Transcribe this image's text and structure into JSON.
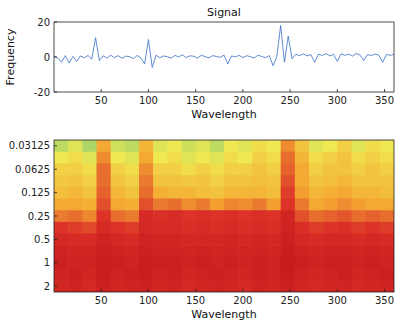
{
  "chart_data": [
    {
      "type": "line",
      "title": "Signal",
      "x_label": "Wavelength",
      "y_label": "Frequency",
      "color": "#3a6fc4",
      "x": [
        0,
        4,
        8,
        12,
        16,
        20,
        24,
        28,
        32,
        36,
        40,
        44,
        48,
        52,
        56,
        60,
        64,
        68,
        72,
        76,
        80,
        84,
        88,
        92,
        96,
        100,
        104,
        108,
        112,
        116,
        120,
        124,
        128,
        132,
        136,
        140,
        144,
        148,
        152,
        156,
        160,
        164,
        168,
        172,
        176,
        180,
        184,
        188,
        192,
        196,
        200,
        204,
        208,
        212,
        216,
        220,
        224,
        228,
        232,
        236,
        240,
        244,
        248,
        252,
        256,
        260,
        264,
        268,
        272,
        276,
        280,
        284,
        288,
        292,
        296,
        300,
        304,
        308,
        312,
        316,
        320,
        324,
        328,
        332,
        336,
        340,
        344,
        348,
        352,
        356,
        360
      ],
      "values": [
        0.5,
        -0.5,
        -3,
        0.8,
        -3.5,
        0.3,
        -2.5,
        0.6,
        -0.4,
        0.9,
        -1.2,
        11,
        -2,
        0.7,
        -0.6,
        1,
        -0.3,
        0.8,
        -0.8,
        0.5,
        0.2,
        -1,
        0.9,
        -0.5,
        -4,
        10,
        -6,
        1,
        -0.4,
        0.6,
        0.2,
        -0.7,
        0.9,
        0.1,
        1.2,
        -0.3,
        0.7,
        0.4,
        -0.6,
        1,
        0.2,
        -0.5,
        0.8,
        0.3,
        -0.2,
        1.1,
        -4,
        0.6,
        0.1,
        0.9,
        -0.3,
        0.7,
        0.2,
        -0.6,
        1,
        0.3,
        -0.4,
        0.8,
        -5,
        0.5,
        18,
        -3,
        12,
        -1,
        1.5,
        0.8,
        1.8,
        0.6,
        1.4,
        -3,
        1.6,
        0.9,
        2,
        0.7,
        1.5,
        -2.5,
        1.8,
        1,
        1.6,
        0.5,
        2,
        1.1,
        -2,
        1.4,
        0.8,
        1.7,
        1,
        -3,
        1.5,
        0.9,
        1.6
      ],
      "xlim": [
        0,
        360
      ],
      "xticks": [
        50,
        100,
        150,
        200,
        250,
        300,
        350
      ],
      "ylim": [
        -20,
        20
      ],
      "yticks": [
        -20,
        0,
        20
      ],
      "grid": false
    },
    {
      "type": "heatmap",
      "x_label": "Wavelength",
      "log": "y",
      "x_edges": [
        0,
        15,
        30,
        45,
        60,
        75,
        90,
        105,
        120,
        135,
        150,
        165,
        180,
        195,
        210,
        225,
        240,
        255,
        270,
        285,
        300,
        315,
        330,
        345,
        360
      ],
      "scales": [
        0.03125,
        0.0442,
        0.0625,
        0.0884,
        0.125,
        0.177,
        0.25,
        0.354,
        0.5,
        0.707,
        1,
        1.414,
        2
      ],
      "cells": [
        [
          0.2,
          0.3,
          0.15,
          0.6,
          0.25,
          0.2,
          0.55,
          0.3,
          0.35,
          0.25,
          0.3,
          0.2,
          0.35,
          0.3,
          0.4,
          0.35,
          0.65,
          0.5,
          0.3,
          0.35,
          0.45,
          0.3,
          0.4,
          0.35
        ],
        [
          0.35,
          0.4,
          0.3,
          0.65,
          0.35,
          0.3,
          0.6,
          0.35,
          0.4,
          0.3,
          0.35,
          0.3,
          0.4,
          0.35,
          0.45,
          0.4,
          0.7,
          0.55,
          0.4,
          0.45,
          0.5,
          0.4,
          0.45,
          0.4
        ],
        [
          0.45,
          0.45,
          0.4,
          0.7,
          0.45,
          0.4,
          0.65,
          0.45,
          0.45,
          0.4,
          0.45,
          0.4,
          0.45,
          0.45,
          0.5,
          0.45,
          0.72,
          0.6,
          0.45,
          0.5,
          0.5,
          0.45,
          0.5,
          0.45
        ],
        [
          0.48,
          0.5,
          0.45,
          0.7,
          0.5,
          0.45,
          0.68,
          0.5,
          0.5,
          0.48,
          0.5,
          0.45,
          0.5,
          0.5,
          0.52,
          0.5,
          0.75,
          0.6,
          0.5,
          0.52,
          0.55,
          0.5,
          0.5,
          0.5
        ],
        [
          0.52,
          0.55,
          0.5,
          0.72,
          0.55,
          0.5,
          0.7,
          0.58,
          0.55,
          0.55,
          0.52,
          0.5,
          0.55,
          0.55,
          0.55,
          0.52,
          0.78,
          0.62,
          0.55,
          0.58,
          0.6,
          0.55,
          0.55,
          0.52
        ],
        [
          0.6,
          0.6,
          0.58,
          0.75,
          0.6,
          0.58,
          0.75,
          0.68,
          0.7,
          0.65,
          0.68,
          0.62,
          0.66,
          0.65,
          0.68,
          0.62,
          0.8,
          0.68,
          0.6,
          0.62,
          0.65,
          0.62,
          0.6,
          0.6
        ],
        [
          0.68,
          0.7,
          0.66,
          0.8,
          0.7,
          0.68,
          0.85,
          0.82,
          0.84,
          0.8,
          0.82,
          0.8,
          0.83,
          0.8,
          0.82,
          0.8,
          0.88,
          0.75,
          0.7,
          0.72,
          0.74,
          0.7,
          0.72,
          0.7
        ],
        [
          0.8,
          0.78,
          0.76,
          0.85,
          0.8,
          0.78,
          0.86,
          0.84,
          0.85,
          0.82,
          0.84,
          0.82,
          0.85,
          0.82,
          0.84,
          0.82,
          0.9,
          0.82,
          0.78,
          0.8,
          0.82,
          0.78,
          0.8,
          0.78
        ],
        [
          0.86,
          0.85,
          0.84,
          0.9,
          0.86,
          0.84,
          0.9,
          0.88,
          0.88,
          0.86,
          0.87,
          0.86,
          0.88,
          0.86,
          0.88,
          0.86,
          0.92,
          0.86,
          0.84,
          0.86,
          0.86,
          0.84,
          0.86,
          0.85
        ],
        [
          0.9,
          0.88,
          0.88,
          0.92,
          0.9,
          0.88,
          0.92,
          0.9,
          0.9,
          0.88,
          0.9,
          0.88,
          0.9,
          0.89,
          0.9,
          0.88,
          0.94,
          0.9,
          0.88,
          0.9,
          0.9,
          0.88,
          0.9,
          0.88
        ],
        [
          0.92,
          0.9,
          0.9,
          0.94,
          0.92,
          0.9,
          0.94,
          0.92,
          0.92,
          0.9,
          0.92,
          0.9,
          0.92,
          0.9,
          0.92,
          0.9,
          0.95,
          0.92,
          0.9,
          0.92,
          0.92,
          0.9,
          0.92,
          0.9
        ],
        [
          0.9,
          0.92,
          0.88,
          0.93,
          0.9,
          0.92,
          0.93,
          0.9,
          0.92,
          0.88,
          0.9,
          0.92,
          0.9,
          0.88,
          0.92,
          0.9,
          0.94,
          0.9,
          0.88,
          0.9,
          0.92,
          0.88,
          0.9,
          0.92
        ],
        [
          0.88,
          0.9,
          0.86,
          0.92,
          0.88,
          0.9,
          0.92,
          0.88,
          0.9,
          0.86,
          0.88,
          0.9,
          0.88,
          0.86,
          0.9,
          0.88,
          0.92,
          0.88,
          0.86,
          0.88,
          0.9,
          0.86,
          0.88,
          0.9
        ]
      ],
      "clim": [
        0,
        1
      ],
      "xlim": [
        0,
        360
      ],
      "xticks": [
        50,
        100,
        150,
        200,
        250,
        300,
        350
      ],
      "ylim": [
        2.378,
        0.02628
      ],
      "yticks": [
        0.03125,
        0.0625,
        0.125,
        0.25,
        0.5,
        1,
        2
      ]
    }
  ]
}
